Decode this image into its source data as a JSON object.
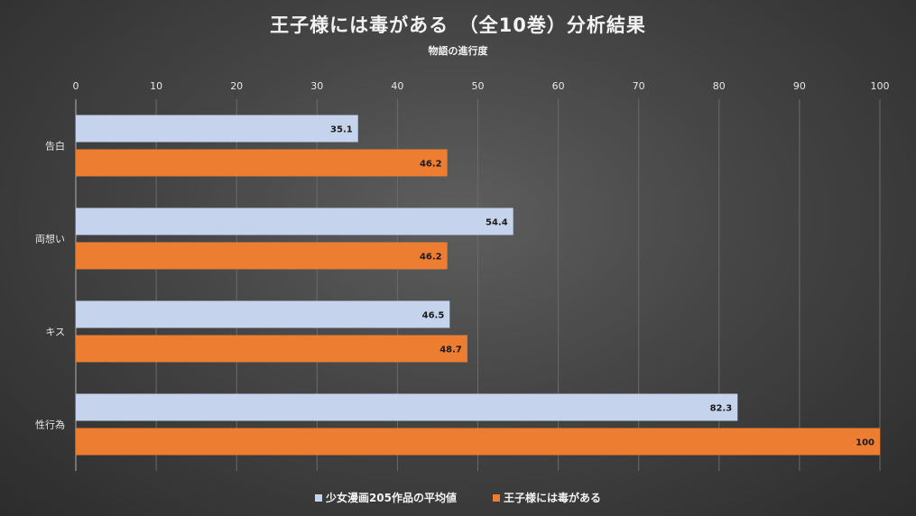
{
  "chart_data": {
    "type": "bar",
    "orientation": "horizontal",
    "title": "王子様には毒がある　（全10巻）分析結果",
    "subtitle": "物語の進行度",
    "categories": [
      "告白",
      "両想い",
      "キス",
      "性行為"
    ],
    "series": [
      {
        "name": "少女漫画205作品の平均値",
        "color": "#c5d3ec",
        "values": [
          35.1,
          54.4,
          46.5,
          82.3
        ],
        "labels": [
          "35.1",
          "54.4",
          "46.5",
          "82.3"
        ]
      },
      {
        "name": "王子様には毒がある",
        "color": "#ed7d31",
        "values": [
          46.2,
          46.2,
          48.7,
          100
        ],
        "labels": [
          "46.2",
          "46.2",
          "48.7",
          "100"
        ]
      }
    ],
    "xlim": [
      0,
      100
    ],
    "xticks": [
      "0",
      "10",
      "20",
      "30",
      "40",
      "50",
      "60",
      "70",
      "80",
      "90",
      "100"
    ],
    "xaxis_position": "top",
    "grid": true,
    "legend_position": "bottom",
    "data_labels": true
  }
}
